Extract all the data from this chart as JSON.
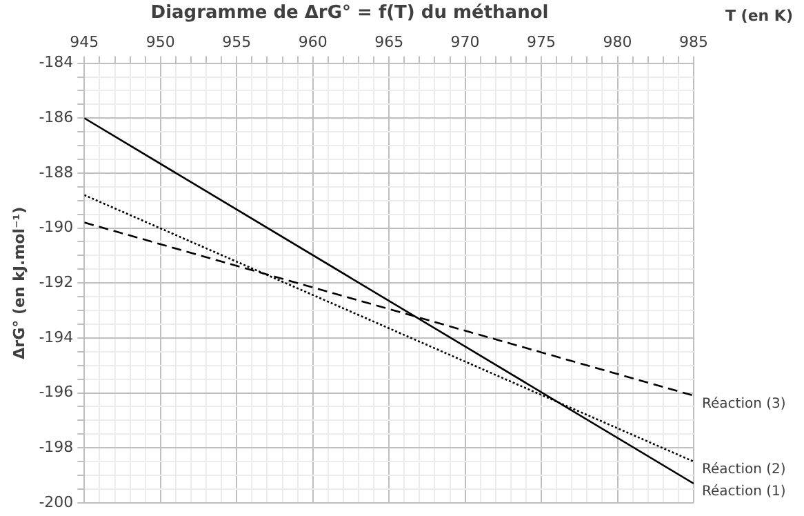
{
  "chart_data": {
    "type": "line",
    "title": "Diagramme de ΔrG° = f(T) du méthanol",
    "xlabel": "T (en K)",
    "ylabel": "ΔrG° (en kJ.mol⁻¹)",
    "x": [
      945,
      985
    ],
    "series": [
      {
        "name": "Réaction (1)",
        "color": "#000000",
        "line_style": "solid",
        "values": [
          -186.0,
          -199.3
        ]
      },
      {
        "name": "Réaction (2)",
        "color": "#000000",
        "line_style": "dotted",
        "values": [
          -188.8,
          -198.5
        ]
      },
      {
        "name": "Réaction (3)",
        "color": "#000000",
        "line_style": "dashed",
        "values": [
          -189.8,
          -196.1
        ]
      }
    ],
    "xlim": [
      945,
      985
    ],
    "xticks": [
      945,
      {
        "value": 946,
        "label": null
      },
      {
        "value": 947,
        "label": null
      },
      {
        "value": 948,
        "label": null
      },
      {
        "value": 949,
        "label": null
      },
      950,
      {
        "value": 951,
        "label": null
      },
      {
        "value": 952,
        "label": null
      },
      {
        "value": 953,
        "label": null
      },
      {
        "value": 954,
        "label": null
      },
      955,
      {
        "value": 956,
        "label": null
      },
      {
        "value": 957,
        "label": null
      },
      {
        "value": 958,
        "label": null
      },
      {
        "value": 959,
        "label": null
      },
      960,
      {
        "value": 961,
        "label": null
      },
      {
        "value": 962,
        "label": null
      },
      {
        "value": 963,
        "label": null
      },
      {
        "value": 964,
        "label": null
      },
      965,
      {
        "value": 966,
        "label": null
      },
      {
        "value": 967,
        "label": null
      },
      {
        "value": 968,
        "label": null
      },
      {
        "value": 969,
        "label": null
      },
      970,
      {
        "value": 971,
        "label": null
      },
      {
        "value": 972,
        "label": null
      },
      {
        "value": 973,
        "label": null
      },
      {
        "value": 974,
        "label": null
      },
      975,
      {
        "value": 976,
        "label": null
      },
      {
        "value": 977,
        "label": null
      },
      {
        "value": 978,
        "label": null
      },
      {
        "value": 979,
        "label": null
      },
      980,
      {
        "value": 981,
        "label": null
      },
      {
        "value": 982,
        "label": null
      },
      {
        "value": 983,
        "label": null
      },
      {
        "value": 984,
        "label": null
      },
      985
    ],
    "ylim": [
      -200,
      -184
    ],
    "yticks": [
      -200,
      {
        "value": -199.5,
        "label": null
      },
      {
        "value": -199,
        "label": null
      },
      {
        "value": -198.5,
        "label": null
      },
      -198,
      {
        "value": -197.5,
        "label": null
      },
      {
        "value": -197,
        "label": null
      },
      {
        "value": -196.5,
        "label": null
      },
      -196,
      {
        "value": -195.5,
        "label": null
      },
      {
        "value": -195,
        "label": null
      },
      {
        "value": -194.5,
        "label": null
      },
      -194,
      {
        "value": -193.5,
        "label": null
      },
      {
        "value": -193,
        "label": null
      },
      {
        "value": -192.5,
        "label": null
      },
      -192,
      {
        "value": -191.5,
        "label": null
      },
      {
        "value": -191,
        "label": null
      },
      {
        "value": -190.5,
        "label": null
      },
      -190,
      {
        "value": -189.5,
        "label": null
      },
      {
        "value": -189,
        "label": null
      },
      {
        "value": -188.5,
        "label": null
      },
      -188,
      {
        "value": -187.5,
        "label": null
      },
      {
        "value": -187,
        "label": null
      },
      {
        "value": -186.5,
        "label": null
      },
      -186,
      {
        "value": -185.5,
        "label": null
      },
      {
        "value": -185,
        "label": null
      },
      {
        "value": -184.5,
        "label": null
      },
      -184
    ],
    "grid": true,
    "legend": false,
    "marker": "none"
  }
}
